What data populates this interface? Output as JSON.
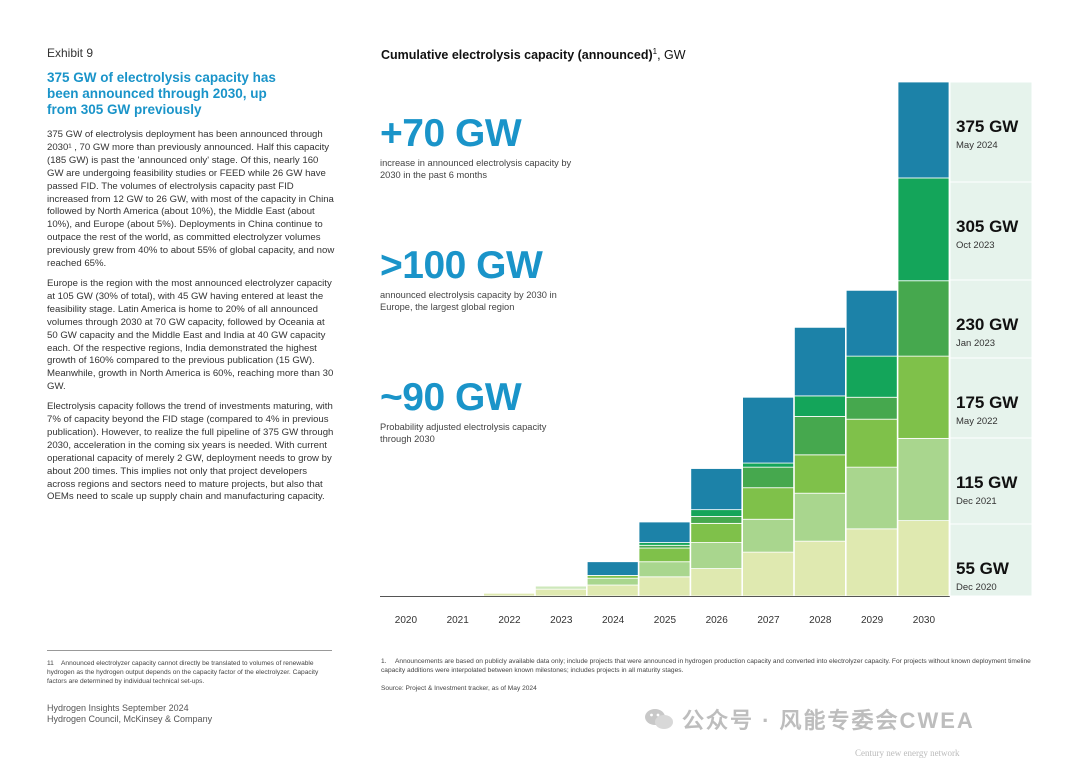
{
  "left": {
    "exhibit": "Exhibit 9",
    "headline": "375 GW of electrolysis capacity has been announced through 2030, up from 305 GW previously",
    "paragraphs": [
      "375 GW of electrolysis deployment has been announced through 2030¹ , 70 GW more than previously announced. Half this capacity (185 GW) is past the 'announced only' stage. Of this, nearly 160 GW are undergoing feasibility studies or FEED while 26 GW have passed FID. The volumes of electrolysis capacity past FID increased from 12 GW to 26 GW, with most of the capacity in China followed by North America (about 10%), the Middle East (about 10%), and Europe (about 5%). Deployments in China continue to outpace the rest of the world, as committed electrolyzer volumes previously grew from 40% to about 55% of global capacity, and now reached 65%.",
      "Europe is the region with the most announced electrolyzer capacity at 105 GW (30% of total), with 45 GW having entered at least the feasibility stage. Latin America is home to 20% of all announced volumes through 2030 at 70 GW capacity, followed by Oceania at 50 GW capacity and the Middle East and India at 40 GW capacity each. Of the respective regions, India demonstrated the highest growth of 160% compared to the previous publication (15 GW). Meanwhile, growth in North America is 60%, reaching more than 30 GW.",
      "Electrolysis capacity follows the trend of investments maturing, with 7% of capacity beyond the FID stage (compared to 4% in previous publication). However, to realize the full pipeline of 375 GW through 2030, acceleration in the coming six years is needed. With current operational capacity of merely 2 GW, deployment needs to grow by about 200 times. This implies not only that project developers across regions and sectors need to mature projects, but also that OEMs need to scale up supply chain and manufacturing capacity."
    ],
    "footnote_num": "11",
    "footnote": "Announced electrolyzer capacity cannot directly be translated to volumes of renewable hydrogen as the hydrogen output depends on the capacity factor of the electrolyzer. Capacity factors are determined by individual technical set-ups.",
    "publication": "Hydrogen Insights September 2024",
    "publisher": "Hydrogen Council, McKinsey & Company"
  },
  "right": {
    "chart_title_bold": "Cumulative electrolysis capacity (announced)",
    "chart_title_sup": "1",
    "chart_title_unit": ", GW",
    "stats": [
      {
        "big": "+70 GW",
        "small": "increase in announced electrolysis capacity by 2030 in the past 6 months"
      },
      {
        "big": ">100 GW",
        "small": "announced electrolysis capacity by 2030 in Europe, the largest global region"
      },
      {
        "big": "~90 GW",
        "small": "Probability adjusted electrolysis capacity through 2030"
      }
    ],
    "footnote_num": "1.",
    "footnote": "Announcements are based on publicly available data only; include projects that were announced in hydrogen production capacity and converted into electrolyzer capacity. For projects without known deployment timeline capacity additions were interpolated between known milestones; includes projects in all maturity stages.",
    "source": "Source: Project & Investment tracker, as of May 2024"
  },
  "watermark": {
    "text": "公众号 · 风能专委会CWEA",
    "sub": "Century new energy network"
  },
  "chart_data": {
    "type": "bar",
    "stacked": true,
    "unit": "GW",
    "categories": [
      "2020",
      "2021",
      "2022",
      "2023",
      "2024",
      "2025",
      "2026",
      "2027",
      "2028",
      "2029",
      "2030"
    ],
    "series": [
      {
        "name": "Dec 2020",
        "color": "#dfe9b0",
        "values": [
          0.5,
          0.5,
          2,
          5,
          8,
          14,
          20,
          32,
          40,
          49,
          55
        ]
      },
      {
        "name": "Dec 2021",
        "color": "#a9d68e",
        "values": [
          0,
          0,
          0,
          1,
          5,
          11,
          19,
          24,
          35,
          45,
          60
        ]
      },
      {
        "name": "May 2022",
        "color": "#7fc14a",
        "values": [
          0,
          0,
          0,
          1,
          2,
          10,
          14,
          23,
          28,
          35,
          60
        ]
      },
      {
        "name": "Jan 2023",
        "color": "#46a84e",
        "values": [
          0,
          0,
          0,
          0,
          0,
          2,
          5,
          15,
          28,
          16,
          55
        ]
      },
      {
        "name": "Oct 2023",
        "color": "#14a55a",
        "values": [
          0,
          0,
          0,
          0,
          0,
          2,
          5,
          3,
          15,
          30,
          75
        ]
      },
      {
        "name": "May 2024",
        "color": "#1c82a8",
        "values": [
          0,
          0,
          0,
          0,
          10,
          15,
          30,
          48,
          50,
          48,
          70
        ]
      }
    ],
    "totals_labels": [
      {
        "value": "375 GW",
        "date": "May 2024",
        "color": "#1c82a8"
      },
      {
        "value": "305 GW",
        "date": "Oct 2023",
        "color": "#14a55a"
      },
      {
        "value": "230 GW",
        "date": "Jan 2023",
        "color": "#46a84e"
      },
      {
        "value": "175 GW",
        "date": "May 2022",
        "color": "#7fc14a"
      },
      {
        "value": "115 GW",
        "date": "Dec 2021",
        "color": "#a9d68e"
      },
      {
        "value": "55 GW",
        "date": "Dec 2020",
        "color": "#dfe9b0"
      }
    ],
    "ylim": [
      0,
      375
    ],
    "grid": false,
    "legend": "right"
  }
}
